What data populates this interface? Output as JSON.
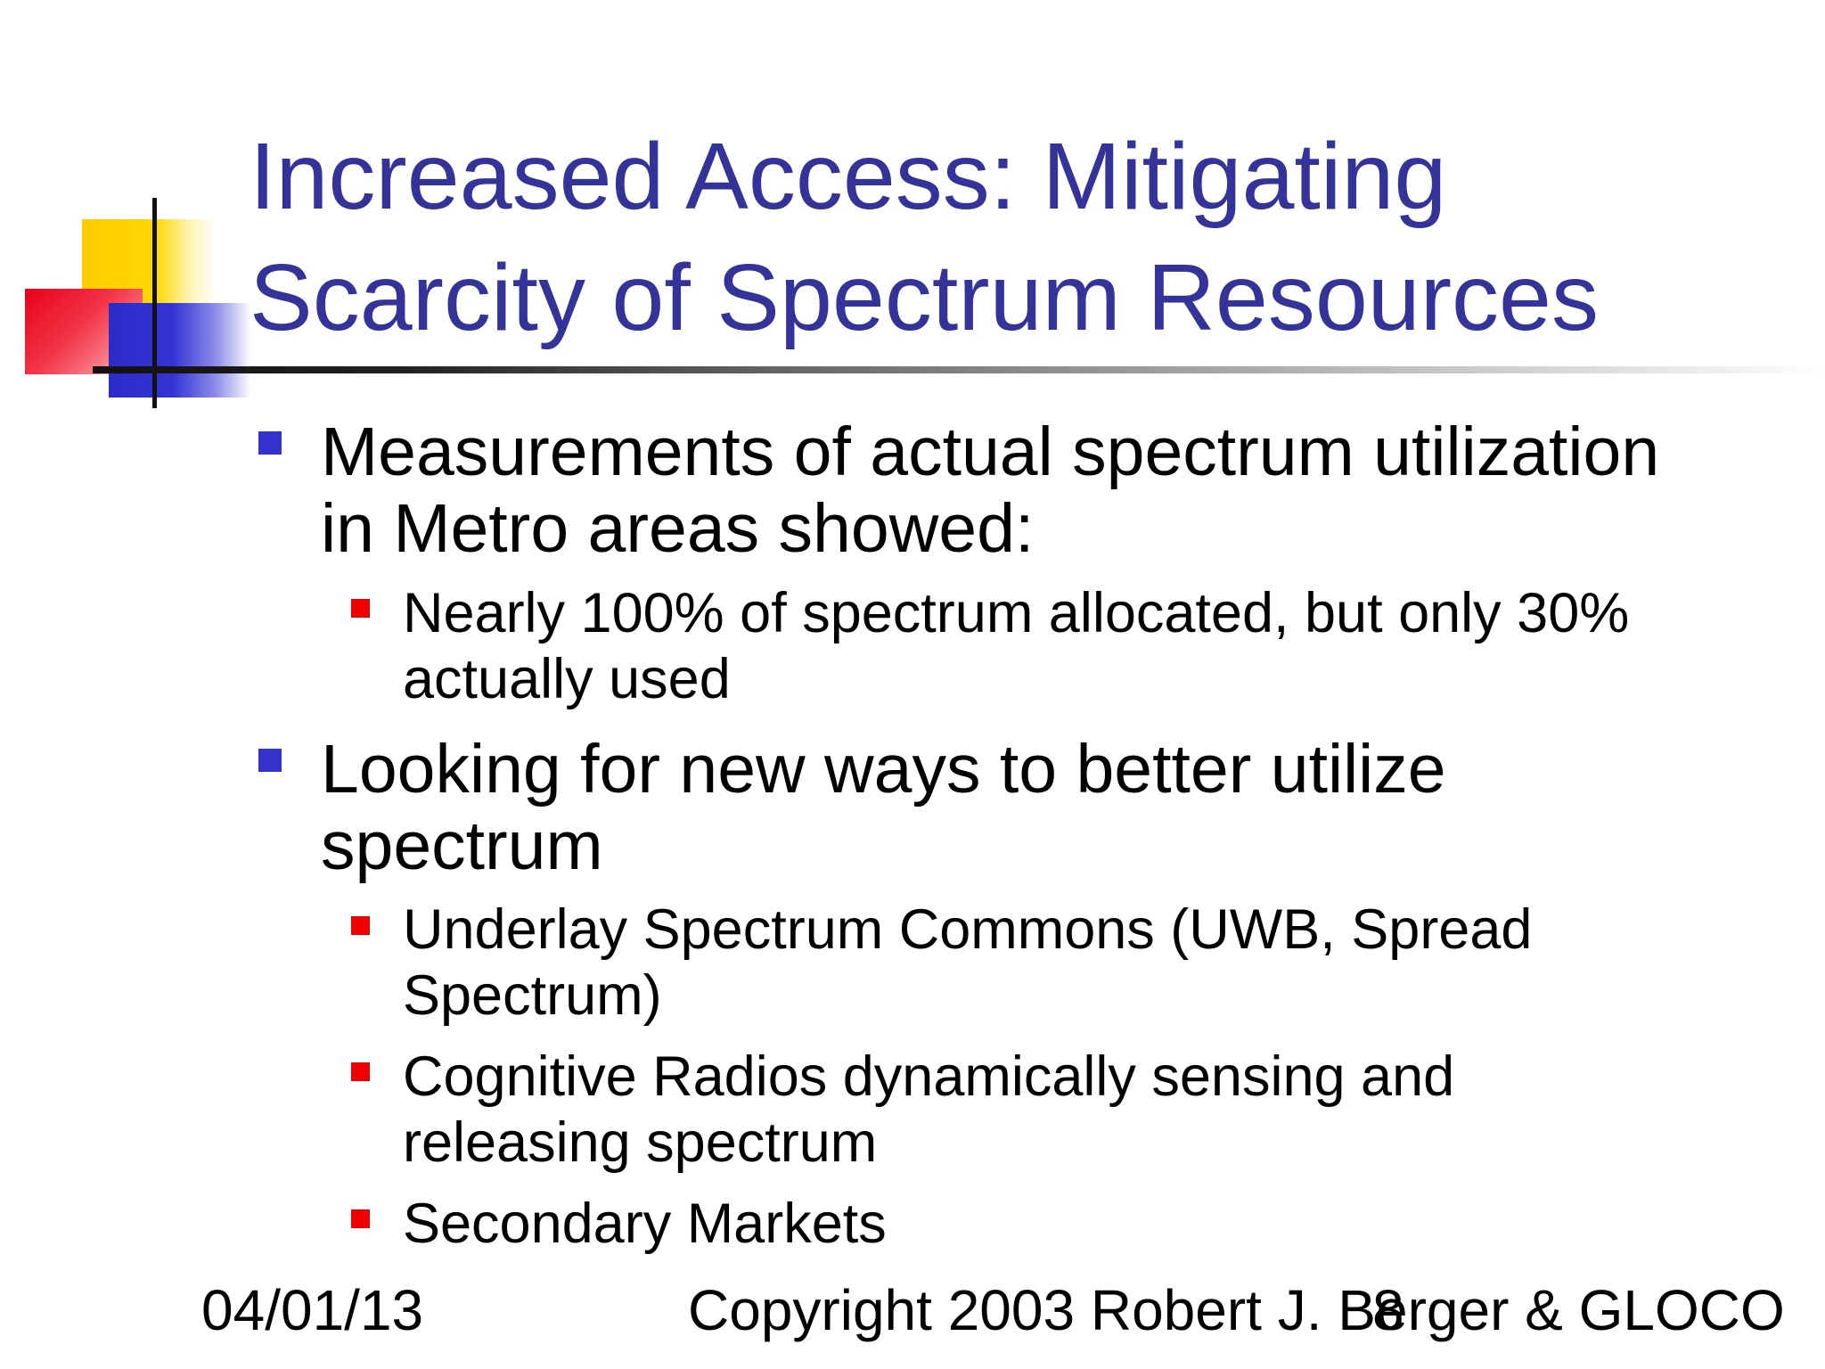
{
  "slide": {
    "title_lines": [
      "Increased Access: Mitigating",
      "Scarcity of Spectrum Resources"
    ],
    "bullets": [
      {
        "lines": [
          "Measurements of actual spectrum utilization",
          "in Metro areas showed:"
        ],
        "sub": [
          {
            "lines": [
              "Nearly 100% of spectrum allocated, but only 30%",
              "actually used"
            ]
          }
        ]
      },
      {
        "lines": [
          "Looking for new ways to better utilize",
          "spectrum"
        ],
        "sub": [
          {
            "lines": [
              "Underlay Spectrum Commons (UWB, Spread",
              "Spectrum)"
            ]
          },
          {
            "lines": [
              "Cognitive Radios dynamically sensing and",
              "releasing spectrum"
            ]
          },
          {
            "lines": [
              "Secondary Markets"
            ]
          }
        ]
      }
    ]
  },
  "footer": {
    "date": "04/01/13",
    "copyright": "Copyright 2003 Robert J. Berger & GLOCO",
    "page_number": "8"
  },
  "colors": {
    "title": "#333399",
    "bullet_level1": "#3333CC",
    "bullet_level2": "#EE0000"
  }
}
